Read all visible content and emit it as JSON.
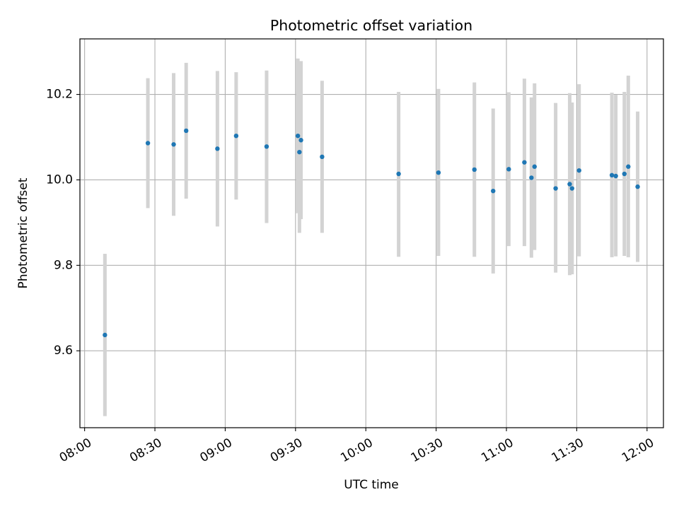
{
  "chart_data": {
    "type": "scatter",
    "title": "Photometric offset variation",
    "xlabel": "UTC time",
    "ylabel": "Photometric offset",
    "x_ticks": [
      "08:00",
      "08:30",
      "09:00",
      "09:30",
      "10:00",
      "10:30",
      "11:00",
      "11:30",
      "12:00"
    ],
    "y_ticks": [
      "9.6",
      "9.8",
      "10.0",
      "10.2"
    ],
    "xlim": [
      "07:58",
      "12:07"
    ],
    "ylim": [
      9.42,
      10.33
    ],
    "grid": true,
    "colors": {
      "point": "#1f77b4",
      "errorbar": "#d3d3d3",
      "grid": "#b0b0b0"
    },
    "points": [
      {
        "x": "08:08:40",
        "y": 9.637,
        "yerr_low": 9.447,
        "yerr_high": 9.827
      },
      {
        "x": "08:27:00",
        "y": 10.086,
        "yerr_low": 9.934,
        "yerr_high": 10.238
      },
      {
        "x": "08:38:00",
        "y": 10.083,
        "yerr_low": 9.916,
        "yerr_high": 10.25
      },
      {
        "x": "08:43:20",
        "y": 10.115,
        "yerr_low": 9.956,
        "yerr_high": 10.274
      },
      {
        "x": "08:56:40",
        "y": 10.073,
        "yerr_low": 9.891,
        "yerr_high": 10.255
      },
      {
        "x": "09:04:40",
        "y": 10.103,
        "yerr_low": 9.954,
        "yerr_high": 10.252
      },
      {
        "x": "09:17:40",
        "y": 10.078,
        "yerr_low": 9.899,
        "yerr_high": 10.256
      },
      {
        "x": "09:31:00",
        "y": 10.103,
        "yerr_low": 9.922,
        "yerr_high": 10.284
      },
      {
        "x": "09:31:40",
        "y": 10.065,
        "yerr_low": 9.876,
        "yerr_high": 10.254
      },
      {
        "x": "09:32:20",
        "y": 10.093,
        "yerr_low": 9.908,
        "yerr_high": 10.278
      },
      {
        "x": "09:41:20",
        "y": 10.054,
        "yerr_low": 9.876,
        "yerr_high": 10.232
      },
      {
        "x": "10:14:00",
        "y": 10.014,
        "yerr_low": 9.82,
        "yerr_high": 10.206
      },
      {
        "x": "10:31:00",
        "y": 10.017,
        "yerr_low": 9.822,
        "yerr_high": 10.213
      },
      {
        "x": "10:46:20",
        "y": 10.024,
        "yerr_low": 9.82,
        "yerr_high": 10.228
      },
      {
        "x": "10:54:20",
        "y": 9.974,
        "yerr_low": 9.781,
        "yerr_high": 10.167
      },
      {
        "x": "11:01:00",
        "y": 10.025,
        "yerr_low": 9.845,
        "yerr_high": 10.205
      },
      {
        "x": "11:07:40",
        "y": 10.041,
        "yerr_low": 9.845,
        "yerr_high": 10.237
      },
      {
        "x": "11:10:40",
        "y": 10.005,
        "yerr_low": 9.818,
        "yerr_high": 10.193
      },
      {
        "x": "11:12:00",
        "y": 10.031,
        "yerr_low": 9.836,
        "yerr_high": 10.226
      },
      {
        "x": "11:21:00",
        "y": 9.98,
        "yerr_low": 9.783,
        "yerr_high": 10.18
      },
      {
        "x": "11:27:00",
        "y": 9.99,
        "yerr_low": 9.777,
        "yerr_high": 10.203
      },
      {
        "x": "11:28:00",
        "y": 9.98,
        "yerr_low": 9.779,
        "yerr_high": 10.181
      },
      {
        "x": "11:31:00",
        "y": 10.022,
        "yerr_low": 9.821,
        "yerr_high": 10.224
      },
      {
        "x": "11:45:00",
        "y": 10.011,
        "yerr_low": 9.819,
        "yerr_high": 10.204
      },
      {
        "x": "11:46:40",
        "y": 10.009,
        "yerr_low": 9.821,
        "yerr_high": 10.199
      },
      {
        "x": "11:50:20",
        "y": 10.014,
        "yerr_low": 9.822,
        "yerr_high": 10.206
      },
      {
        "x": "11:52:00",
        "y": 10.031,
        "yerr_low": 9.819,
        "yerr_high": 10.244
      },
      {
        "x": "11:56:00",
        "y": 9.984,
        "yerr_low": 9.808,
        "yerr_high": 10.16
      }
    ]
  }
}
